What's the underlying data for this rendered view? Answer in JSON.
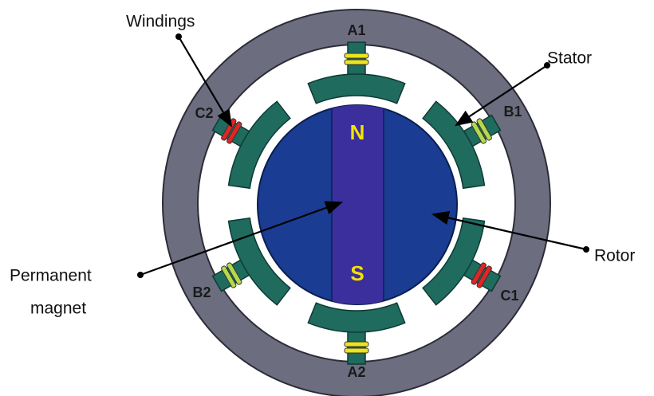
{
  "poles": [
    {
      "label": "A1"
    },
    {
      "label": "B1"
    },
    {
      "label": "C1"
    },
    {
      "label": "A2"
    },
    {
      "label": "B2"
    },
    {
      "label": "C2"
    }
  ],
  "rotor": {
    "north": "N",
    "south": "S"
  },
  "callouts": {
    "windings": "Windings",
    "stator": "Stator",
    "rotor": "Rotor",
    "magnet_line1": "Permanent",
    "magnet_line2": "magnet"
  }
}
